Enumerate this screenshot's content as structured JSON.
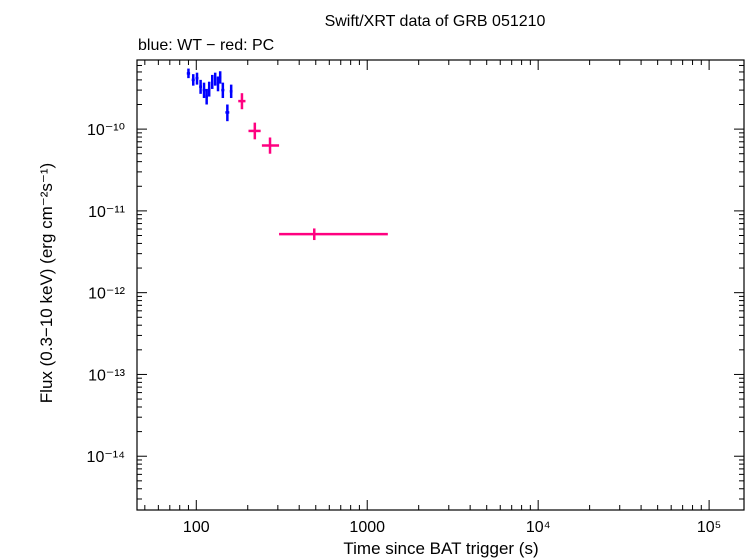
{
  "chart_data": {
    "type": "scatter",
    "title": "Swift/XRT data of GRB 051210",
    "subtitle": "blue: WT − red: PC",
    "xlabel": "Time since BAT trigger (s)",
    "ylabel": "Flux (0.3−10 keV) (erg cm⁻²s⁻¹)",
    "x_scale": "log",
    "y_scale": "log",
    "xlim": [
      45,
      160000
    ],
    "ylim": [
      2.2e-15,
      7e-10
    ],
    "x_ticks": [
      {
        "value": 100,
        "label": "100"
      },
      {
        "value": 1000,
        "label": "1000"
      },
      {
        "value": 10000,
        "label": "10⁴"
      },
      {
        "value": 100000,
        "label": "10⁵"
      }
    ],
    "y_ticks": [
      {
        "value": 1e-10,
        "label": "10⁻¹⁰"
      },
      {
        "value": 1e-11,
        "label": "10⁻¹¹"
      },
      {
        "value": 1e-12,
        "label": "10⁻¹²"
      },
      {
        "value": 1e-13,
        "label": "10⁻¹³"
      },
      {
        "value": 1e-14,
        "label": "10⁻¹⁴"
      }
    ],
    "grid": false,
    "series": [
      {
        "name": "WT",
        "color": "#0000ff",
        "points": [
          {
            "x": 90,
            "x_lo": 88,
            "x_hi": 92,
            "y": 4.8e-10,
            "y_lo": 4.2e-10,
            "y_hi": 5.5e-10
          },
          {
            "x": 96,
            "x_lo": 94,
            "x_hi": 98,
            "y": 4e-10,
            "y_lo": 3.4e-10,
            "y_hi": 4.7e-10
          },
          {
            "x": 101,
            "x_lo": 99,
            "x_hi": 103,
            "y": 4.2e-10,
            "y_lo": 3.5e-10,
            "y_hi": 4.9e-10
          },
          {
            "x": 106,
            "x_lo": 104,
            "x_hi": 108,
            "y": 3.3e-10,
            "y_lo": 2.7e-10,
            "y_hi": 4e-10
          },
          {
            "x": 111,
            "x_lo": 109,
            "x_hi": 113,
            "y": 3e-10,
            "y_lo": 2.4e-10,
            "y_hi": 3.7e-10
          },
          {
            "x": 115,
            "x_lo": 113,
            "x_hi": 117,
            "y": 2.5e-10,
            "y_lo": 2e-10,
            "y_hi": 3.1e-10
          },
          {
            "x": 119,
            "x_lo": 117,
            "x_hi": 121,
            "y": 3.1e-10,
            "y_lo": 2.5e-10,
            "y_hi": 3.8e-10
          },
          {
            "x": 124,
            "x_lo": 122,
            "x_hi": 126,
            "y": 3.8e-10,
            "y_lo": 3.1e-10,
            "y_hi": 4.6e-10
          },
          {
            "x": 129,
            "x_lo": 127,
            "x_hi": 131,
            "y": 4.1e-10,
            "y_lo": 3.4e-10,
            "y_hi": 4.9e-10
          },
          {
            "x": 134,
            "x_lo": 132,
            "x_hi": 136,
            "y": 3.6e-10,
            "y_lo": 2.9e-10,
            "y_hi": 4.4e-10
          },
          {
            "x": 138,
            "x_lo": 136,
            "x_hi": 140,
            "y": 4.3e-10,
            "y_lo": 3.6e-10,
            "y_hi": 5.1e-10
          },
          {
            "x": 143,
            "x_lo": 140,
            "x_hi": 146,
            "y": 3e-10,
            "y_lo": 2.4e-10,
            "y_hi": 3.7e-10
          },
          {
            "x": 152,
            "x_lo": 148,
            "x_hi": 156,
            "y": 1.6e-10,
            "y_lo": 1.25e-10,
            "y_hi": 2e-10
          },
          {
            "x": 160,
            "x_lo": 157,
            "x_hi": 163,
            "y": 2.9e-10,
            "y_lo": 2.4e-10,
            "y_hi": 3.5e-10
          }
        ]
      },
      {
        "name": "PC",
        "color": "#ff0080",
        "points": [
          {
            "x": 185,
            "x_lo": 176,
            "x_hi": 194,
            "y": 2.2e-10,
            "y_lo": 1.75e-10,
            "y_hi": 2.75e-10
          },
          {
            "x": 220,
            "x_lo": 202,
            "x_hi": 238,
            "y": 9.5e-11,
            "y_lo": 7.5e-11,
            "y_hi": 1.2e-10
          },
          {
            "x": 270,
            "x_lo": 242,
            "x_hi": 305,
            "y": 6.3e-11,
            "y_lo": 5e-11,
            "y_hi": 7.9e-11
          },
          {
            "x": 490,
            "x_lo": 305,
            "x_hi": 1320,
            "y": 5.2e-12,
            "y_lo": 4.4e-12,
            "y_hi": 6.1e-12
          }
        ]
      }
    ]
  }
}
